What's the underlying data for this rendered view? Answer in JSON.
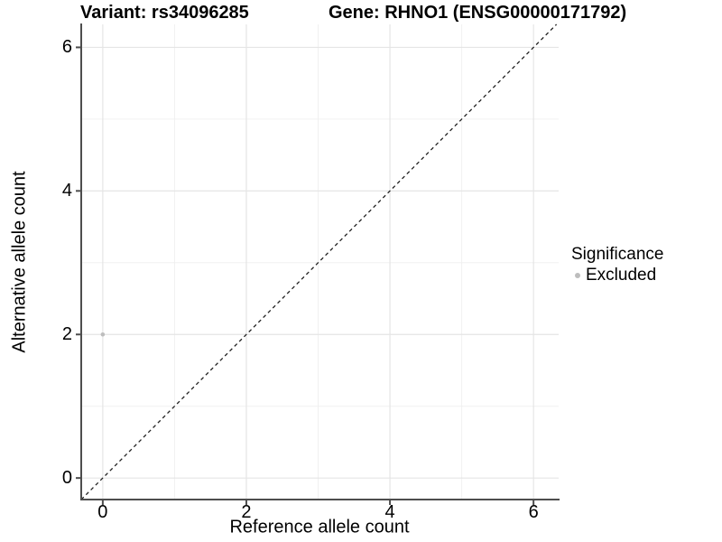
{
  "chart_data": {
    "type": "scatter",
    "title_left": "Variant: rs34096285",
    "title_right": "Gene: RHNO1 (ENSG00000171792)",
    "xlabel": "Reference allele count",
    "ylabel": "Alternative allele count",
    "xlim": [
      -0.3,
      6.35
    ],
    "ylim": [
      -0.3,
      6.32
    ],
    "x_major_ticks": [
      0,
      2,
      4,
      6
    ],
    "y_major_ticks": [
      0,
      2,
      4,
      6
    ],
    "x_minor_ticks": [
      1,
      3,
      5
    ],
    "y_minor_ticks": [
      1,
      3,
      5
    ],
    "grid": true,
    "points": [
      {
        "x": 0,
        "y": 2,
        "significance": "Excluded"
      }
    ],
    "identity_line": {
      "slope": 1,
      "intercept": 0,
      "style": "dashed"
    },
    "legend": {
      "title": "Significance",
      "position": "right",
      "items": [
        {
          "label": "Excluded",
          "color": "#bdbdbd"
        }
      ]
    },
    "colors": {
      "point": "#bdbdbd",
      "grid_major": "#e5e5e5",
      "grid_minor": "#f0f0f0",
      "axis": "#4d4d4d",
      "identity_line": "#222222",
      "background": "#ffffff",
      "text": "#000000"
    }
  }
}
